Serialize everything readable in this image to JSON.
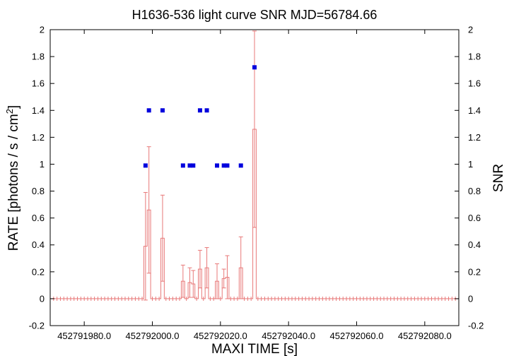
{
  "chart_data": {
    "type": "scatter",
    "title": "H1636-536 light curve  SNR MJD=56784.66",
    "xlabel": "MAXI TIME [s]",
    "ylabel": "RATE [photons / s / cm",
    "ylabel_sup": "2",
    "ylabel_close": "]",
    "y2label": "SNR",
    "xlim": [
      452791970.0,
      452792090.0
    ],
    "ylim": [
      -0.2,
      2.0
    ],
    "y2lim": [
      -0.2,
      2.0
    ],
    "x_ticks": [
      "452791980.0",
      "452792000.0",
      "452792020.0",
      "452792040.0",
      "452792060.0",
      "452792080.0"
    ],
    "x_tick_values": [
      452791980.0,
      452792000.0,
      452792020.0,
      452792040.0,
      452792060.0,
      452792080.0
    ],
    "y_ticks": [
      "-0.2",
      "0",
      "0.2",
      "0.4",
      "0.6",
      "0.8",
      "1",
      "1.2",
      "1.4",
      "1.6",
      "1.8",
      "2"
    ],
    "y_tick_values": [
      -0.2,
      0,
      0.2,
      0.4,
      0.6,
      0.8,
      1.0,
      1.2,
      1.4,
      1.6,
      1.8,
      2.0
    ],
    "grid": false,
    "colors": {
      "rate": "#e87878",
      "snr": "#0000dd"
    },
    "series": [
      {
        "kind": "rate-steps-with-errorbars",
        "baseline": 0,
        "nonzero": [
          {
            "x": 452791998.0,
            "y": 0.39,
            "err": 0.4
          },
          {
            "x": 452791999.0,
            "y": 0.66,
            "err": 0.47
          },
          {
            "x": 452792003.0,
            "y": 0.45,
            "err": 0.32
          },
          {
            "x": 452792009.0,
            "y": 0.13,
            "err": 0.12
          },
          {
            "x": 452792011.0,
            "y": 0.12,
            "err": 0.11
          },
          {
            "x": 452792012.0,
            "y": 0.11,
            "err": 0.1
          },
          {
            "x": 452792014.0,
            "y": 0.22,
            "err": 0.14
          },
          {
            "x": 452792016.0,
            "y": 0.23,
            "err": 0.15
          },
          {
            "x": 452792019.0,
            "y": 0.13,
            "err": 0.13
          },
          {
            "x": 452792021.0,
            "y": 0.15,
            "err": 0.07
          },
          {
            "x": 452792022.0,
            "y": 0.16,
            "err": 0.16
          },
          {
            "x": 452792026.0,
            "y": 0.23,
            "err": 0.23
          },
          {
            "x": 452792030.0,
            "y": 1.26,
            "err": 0.73
          }
        ]
      },
      {
        "kind": "snr-points",
        "points": [
          {
            "x": 452791998.0,
            "y": 0.99
          },
          {
            "x": 452791999.0,
            "y": 1.4
          },
          {
            "x": 452792003.0,
            "y": 1.4
          },
          {
            "x": 452792009.0,
            "y": 0.99
          },
          {
            "x": 452792011.0,
            "y": 0.99
          },
          {
            "x": 452792012.0,
            "y": 0.99
          },
          {
            "x": 452792014.0,
            "y": 1.4
          },
          {
            "x": 452792016.0,
            "y": 1.4
          },
          {
            "x": 452792019.0,
            "y": 0.99
          },
          {
            "x": 452792021.0,
            "y": 0.99
          },
          {
            "x": 452792022.0,
            "y": 0.99
          },
          {
            "x": 452792026.0,
            "y": 0.99
          },
          {
            "x": 452792030.0,
            "y": 1.72
          }
        ]
      }
    ]
  }
}
